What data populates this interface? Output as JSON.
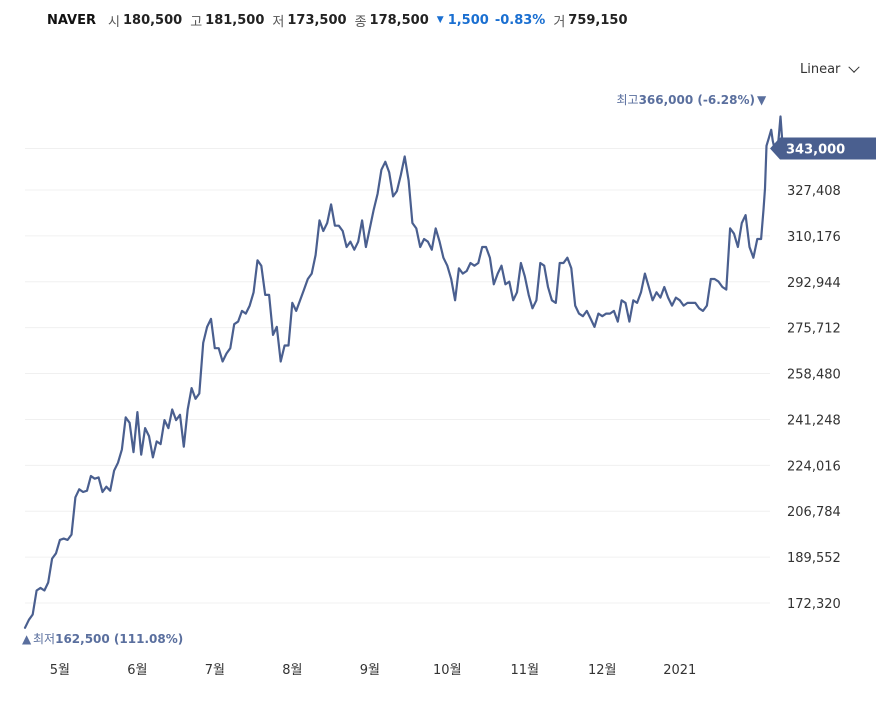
{
  "header": {
    "ticker": "NAVER",
    "open_label": "시",
    "open": "180,500",
    "high_label": "고",
    "high": "181,500",
    "low_label": "저",
    "low": "173,500",
    "close_label": "종",
    "close": "178,500",
    "change_arrow": "▼",
    "change": "1,500",
    "change_pct": "-0.83%",
    "volume_label": "거",
    "volume": "759,150",
    "down_color": "#1a6fd1"
  },
  "scale_select": {
    "value": "Linear",
    "icon": "chevron-down-icon"
  },
  "annotations": {
    "high_label": "최고",
    "high_value": "366,000 (-6.28%)",
    "high_marker": "▼",
    "low_label": "최저",
    "low_value": "162,500 (111.08%)",
    "low_marker": "▲"
  },
  "current_price_label": "343,000",
  "chart_data": {
    "type": "line",
    "line_color": "#4a5f8f",
    "grid": true,
    "y_axis_position": "right",
    "ylim": [
      160000,
      375000
    ],
    "yticks": [
      172320,
      189552,
      206784,
      224016,
      241248,
      258480,
      275712,
      292944,
      310176,
      327408,
      343000
    ],
    "ytick_labels": [
      "172,320",
      "189,552",
      "206,784",
      "224,016",
      "241,248",
      "258,480",
      "275,712",
      "292,944",
      "310,176",
      "327,408",
      "343,000"
    ],
    "xticks": [
      {
        "label": "5월",
        "x": 4.0
      },
      {
        "label": "6월",
        "x": 5.0
      },
      {
        "label": "7월",
        "x": 6.0
      },
      {
        "label": "8월",
        "x": 7.0
      },
      {
        "label": "9월",
        "x": 8.0
      },
      {
        "label": "10월",
        "x": 9.0
      },
      {
        "label": "11월",
        "x": 10.0
      },
      {
        "label": "12월",
        "x": 11.0
      },
      {
        "label": "2021",
        "x": 12.0
      }
    ],
    "xlim": [
      3.55,
      13.1
    ],
    "series": [
      {
        "values": [
          [
            3.55,
            163000
          ],
          [
            3.6,
            166000
          ],
          [
            3.65,
            168000
          ],
          [
            3.7,
            177000
          ],
          [
            3.75,
            178000
          ],
          [
            3.8,
            177000
          ],
          [
            3.85,
            180000
          ],
          [
            3.9,
            189000
          ],
          [
            3.95,
            191000
          ],
          [
            4.0,
            196000
          ],
          [
            4.05,
            196500
          ],
          [
            4.1,
            196000
          ],
          [
            4.15,
            198000
          ],
          [
            4.2,
            212000
          ],
          [
            4.25,
            215000
          ],
          [
            4.3,
            214000
          ],
          [
            4.35,
            214500
          ],
          [
            4.4,
            220000
          ],
          [
            4.45,
            219000
          ],
          [
            4.5,
            219500
          ],
          [
            4.55,
            214000
          ],
          [
            4.6,
            216000
          ],
          [
            4.65,
            214500
          ],
          [
            4.7,
            222000
          ],
          [
            4.75,
            225000
          ],
          [
            4.8,
            230000
          ],
          [
            4.85,
            242000
          ],
          [
            4.9,
            240000
          ],
          [
            4.95,
            229000
          ],
          [
            5.0,
            244000
          ],
          [
            5.05,
            228000
          ],
          [
            5.1,
            238000
          ],
          [
            5.15,
            235000
          ],
          [
            5.2,
            227000
          ],
          [
            5.25,
            233000
          ],
          [
            5.3,
            232000
          ],
          [
            5.35,
            241000
          ],
          [
            5.4,
            238000
          ],
          [
            5.45,
            245000
          ],
          [
            5.5,
            241000
          ],
          [
            5.55,
            243000
          ],
          [
            5.6,
            231000
          ],
          [
            5.65,
            245000
          ],
          [
            5.7,
            253000
          ],
          [
            5.75,
            249000
          ],
          [
            5.8,
            251000
          ],
          [
            5.85,
            270000
          ],
          [
            5.9,
            276000
          ],
          [
            5.95,
            279000
          ],
          [
            6.0,
            268000
          ],
          [
            6.05,
            268000
          ],
          [
            6.1,
            263000
          ],
          [
            6.15,
            266000
          ],
          [
            6.2,
            268000
          ],
          [
            6.25,
            277000
          ],
          [
            6.3,
            278000
          ],
          [
            6.35,
            282000
          ],
          [
            6.4,
            281000
          ],
          [
            6.45,
            284000
          ],
          [
            6.5,
            289000
          ],
          [
            6.55,
            301000
          ],
          [
            6.6,
            299000
          ],
          [
            6.65,
            288000
          ],
          [
            6.7,
            288000
          ],
          [
            6.75,
            273000
          ],
          [
            6.8,
            276000
          ],
          [
            6.85,
            263000
          ],
          [
            6.9,
            269000
          ],
          [
            6.95,
            269000
          ],
          [
            7.0,
            285000
          ],
          [
            7.05,
            282000
          ],
          [
            7.1,
            286000
          ],
          [
            7.15,
            290000
          ],
          [
            7.2,
            294000
          ],
          [
            7.25,
            296000
          ],
          [
            7.3,
            303000
          ],
          [
            7.35,
            316000
          ],
          [
            7.4,
            312000
          ],
          [
            7.45,
            315000
          ],
          [
            7.5,
            322000
          ],
          [
            7.55,
            314000
          ],
          [
            7.6,
            314000
          ],
          [
            7.65,
            312000
          ],
          [
            7.7,
            306000
          ],
          [
            7.75,
            308000
          ],
          [
            7.8,
            305000
          ],
          [
            7.85,
            308000
          ],
          [
            7.9,
            316000
          ],
          [
            7.95,
            306000
          ],
          [
            8.0,
            313000
          ],
          [
            8.05,
            320000
          ],
          [
            8.1,
            326000
          ],
          [
            8.15,
            335000
          ],
          [
            8.2,
            338000
          ],
          [
            8.25,
            334000
          ],
          [
            8.3,
            325000
          ],
          [
            8.35,
            327000
          ],
          [
            8.4,
            333000
          ],
          [
            8.45,
            340000
          ],
          [
            8.5,
            331000
          ],
          [
            8.55,
            315000
          ],
          [
            8.6,
            313000
          ],
          [
            8.65,
            306000
          ],
          [
            8.7,
            309000
          ],
          [
            8.75,
            308000
          ],
          [
            8.8,
            305000
          ],
          [
            8.85,
            313000
          ],
          [
            8.9,
            308000
          ],
          [
            8.95,
            302000
          ],
          [
            9.0,
            299000
          ],
          [
            9.05,
            294000
          ],
          [
            9.1,
            286000
          ],
          [
            9.15,
            298000
          ],
          [
            9.2,
            296000
          ],
          [
            9.25,
            297000
          ],
          [
            9.3,
            300000
          ],
          [
            9.35,
            299000
          ],
          [
            9.4,
            300000
          ],
          [
            9.45,
            306000
          ],
          [
            9.5,
            306000
          ],
          [
            9.55,
            302000
          ],
          [
            9.6,
            292000
          ],
          [
            9.65,
            296000
          ],
          [
            9.7,
            299000
          ],
          [
            9.75,
            292000
          ],
          [
            9.8,
            293000
          ],
          [
            9.85,
            286000
          ],
          [
            9.9,
            289000
          ],
          [
            9.95,
            300000
          ],
          [
            10.0,
            295000
          ],
          [
            10.05,
            288000
          ],
          [
            10.1,
            283000
          ],
          [
            10.15,
            286000
          ],
          [
            10.2,
            300000
          ],
          [
            10.25,
            299000
          ],
          [
            10.3,
            291000
          ],
          [
            10.35,
            286000
          ],
          [
            10.4,
            285000
          ],
          [
            10.45,
            300000
          ],
          [
            10.5,
            300000
          ],
          [
            10.55,
            302000
          ],
          [
            10.6,
            298000
          ],
          [
            10.65,
            284000
          ],
          [
            10.7,
            281000
          ],
          [
            10.75,
            280000
          ],
          [
            10.8,
            282000
          ],
          [
            10.85,
            279000
          ],
          [
            10.9,
            276000
          ],
          [
            10.95,
            281000
          ],
          [
            11.0,
            280000
          ],
          [
            11.05,
            281000
          ],
          [
            11.1,
            281000
          ],
          [
            11.15,
            282000
          ],
          [
            11.2,
            278000
          ],
          [
            11.25,
            286000
          ],
          [
            11.3,
            285000
          ],
          [
            11.35,
            278000
          ],
          [
            11.4,
            286000
          ],
          [
            11.45,
            285000
          ],
          [
            11.5,
            289000
          ],
          [
            11.55,
            296000
          ],
          [
            11.6,
            291000
          ],
          [
            11.65,
            286000
          ],
          [
            11.7,
            289000
          ],
          [
            11.75,
            287000
          ],
          [
            11.8,
            291000
          ],
          [
            11.85,
            287000
          ],
          [
            11.9,
            284000
          ],
          [
            11.95,
            287000
          ],
          [
            12.0,
            286000
          ],
          [
            12.05,
            284000
          ],
          [
            12.1,
            285000
          ],
          [
            12.15,
            285000
          ],
          [
            12.2,
            285000
          ],
          [
            12.25,
            283000
          ],
          [
            12.3,
            282000
          ],
          [
            12.35,
            284000
          ],
          [
            12.4,
            294000
          ],
          [
            12.45,
            294000
          ],
          [
            12.5,
            293000
          ],
          [
            12.55,
            291000
          ],
          [
            12.6,
            290000
          ],
          [
            12.65,
            313000
          ],
          [
            12.7,
            311000
          ],
          [
            12.75,
            306000
          ],
          [
            12.8,
            315000
          ],
          [
            12.85,
            318000
          ],
          [
            12.9,
            306000
          ],
          [
            12.95,
            302000
          ],
          [
            13.0,
            309000
          ],
          [
            13.05,
            309000
          ],
          [
            13.08,
            320000
          ],
          [
            13.1,
            328000
          ],
          [
            13.12,
            344000
          ],
          [
            13.15,
            347000
          ],
          [
            13.18,
            350000
          ],
          [
            13.2,
            346000
          ],
          [
            13.23,
            342000
          ],
          [
            13.26,
            342000
          ],
          [
            13.28,
            348000
          ],
          [
            13.3,
            355000
          ],
          [
            13.33,
            343000
          ]
        ]
      }
    ],
    "high_point": [
      13.3,
      366000
    ],
    "low_point": [
      3.55,
      162500
    ]
  }
}
